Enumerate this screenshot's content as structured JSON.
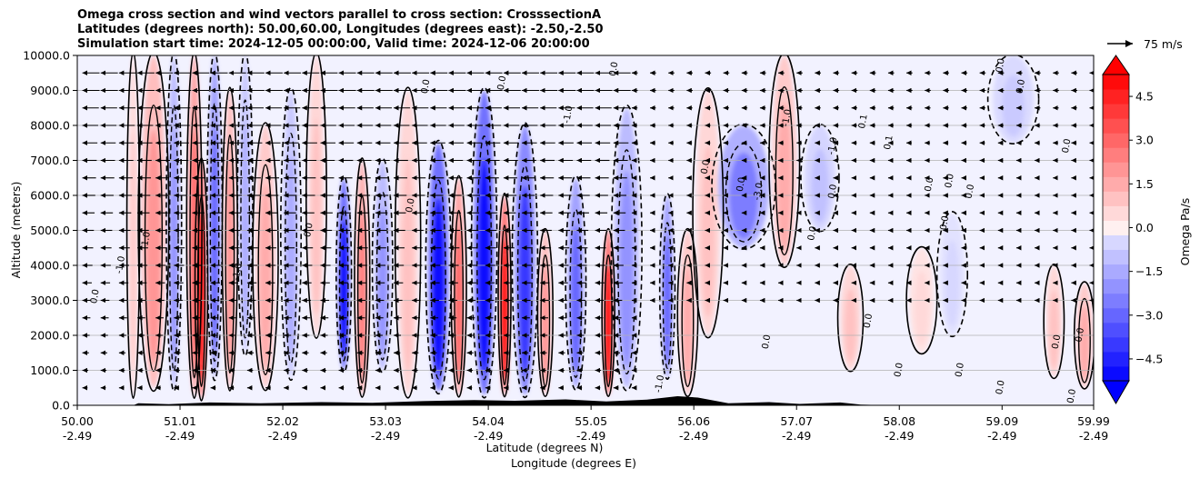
{
  "title_lines": [
    "Omega cross section and wind vectors parallel to cross section: CrosssectionA",
    "Latitudes (degrees north): 50.00,60.00, Longitudes (degrees east): -2.50,-2.50",
    "Simulation start time: 2024-12-05 00:00:00, Valid time: 2024-12-06 20:00:00"
  ],
  "colors": {
    "negative_strong": "#0000ff",
    "positive_strong": "#ff0000",
    "neutral": "#f2f2ff",
    "contour": "#000000",
    "gridline": "#b0b0b0",
    "terrain": "#000000"
  },
  "chart_data": {
    "type": "heatmap",
    "xlabel_lines": [
      "Latitude (degrees N)",
      "Longitude (degrees E)"
    ],
    "ylabel": "Altitude (meters)",
    "xlim": [
      50.0,
      59.99
    ],
    "ylim": [
      0,
      10000
    ],
    "x_ticks": [
      {
        "lat": 50.0,
        "lat_label": "50.00",
        "lon_label": "-2.49"
      },
      {
        "lat": 51.01,
        "lat_label": "51.01",
        "lon_label": "-2.49"
      },
      {
        "lat": 52.02,
        "lat_label": "52.02",
        "lon_label": "-2.49"
      },
      {
        "lat": 53.03,
        "lat_label": "53.03",
        "lon_label": "-2.49"
      },
      {
        "lat": 54.04,
        "lat_label": "54.04",
        "lon_label": "-2.49"
      },
      {
        "lat": 55.05,
        "lat_label": "55.05",
        "lon_label": "-2.49"
      },
      {
        "lat": 56.06,
        "lat_label": "56.06",
        "lon_label": "-2.49"
      },
      {
        "lat": 57.07,
        "lat_label": "57.07",
        "lon_label": "-2.49"
      },
      {
        "lat": 58.08,
        "lat_label": "58.08",
        "lon_label": "-2.49"
      },
      {
        "lat": 59.09,
        "lat_label": "59.09",
        "lon_label": "-2.49"
      },
      {
        "lat": 59.99,
        "lat_label": "59.99",
        "lon_label": "-2.49"
      }
    ],
    "y_ticks": [
      {
        "value": 0,
        "label": "0.0"
      },
      {
        "value": 1000,
        "label": "1000.0"
      },
      {
        "value": 2000,
        "label": "2000.0"
      },
      {
        "value": 3000,
        "label": "3000.0"
      },
      {
        "value": 4000,
        "label": "4000.0"
      },
      {
        "value": 5000,
        "label": "5000.0"
      },
      {
        "value": 6000,
        "label": "6000.0"
      },
      {
        "value": 7000,
        "label": "7000.0"
      },
      {
        "value": 8000,
        "label": "8000.0"
      },
      {
        "value": 9000,
        "label": "9000.0"
      },
      {
        "value": 10000,
        "label": "10000.0"
      }
    ],
    "grid": "horizontal",
    "colorbar": {
      "label": "Omega Pa/s",
      "vmin": -5.25,
      "vmax": 5.25,
      "step": 0.5,
      "extend": "both",
      "tick_labels": [
        {
          "value": 4.5,
          "label": "4.5"
        },
        {
          "value": 3.0,
          "label": "3.0"
        },
        {
          "value": 1.5,
          "label": "1.5"
        },
        {
          "value": 0.0,
          "label": "0.0"
        },
        {
          "value": -1.5,
          "label": "−1.5"
        },
        {
          "value": -3.0,
          "label": "−3.0"
        },
        {
          "value": -4.5,
          "label": "−4.5"
        }
      ]
    },
    "quiver_key": {
      "label": "75 m/s",
      "speed": 75
    },
    "omega_features": [
      {
        "lat": 50.55,
        "top": 10000,
        "bottom": 300,
        "width": 0.05,
        "omega": 0.8
      },
      {
        "lat": 50.75,
        "top": 10000,
        "bottom": 500,
        "width": 0.12,
        "omega": 2.0
      },
      {
        "lat": 50.95,
        "top": 10000,
        "bottom": 500,
        "width": 0.06,
        "omega": -2.0
      },
      {
        "lat": 51.15,
        "top": 10000,
        "bottom": 300,
        "width": 0.06,
        "omega": 3.0
      },
      {
        "lat": 51.22,
        "top": 7000,
        "bottom": 200,
        "width": 0.05,
        "omega": 5.0
      },
      {
        "lat": 51.35,
        "top": 10000,
        "bottom": 800,
        "width": 0.06,
        "omega": -3.0
      },
      {
        "lat": 51.5,
        "top": 9000,
        "bottom": 500,
        "width": 0.06,
        "omega": 2.0
      },
      {
        "lat": 51.65,
        "top": 10000,
        "bottom": 1500,
        "width": 0.06,
        "omega": -1.5
      },
      {
        "lat": 51.85,
        "top": 8000,
        "bottom": 500,
        "width": 0.1,
        "omega": 1.5
      },
      {
        "lat": 52.1,
        "top": 9000,
        "bottom": 800,
        "width": 0.08,
        "omega": -1.5
      },
      {
        "lat": 52.35,
        "top": 10000,
        "bottom": 2000,
        "width": 0.08,
        "omega": 1.0
      },
      {
        "lat": 52.62,
        "top": 6500,
        "bottom": 1000,
        "width": 0.06,
        "omega": -5.0
      },
      {
        "lat": 52.8,
        "top": 7000,
        "bottom": 300,
        "width": 0.06,
        "omega": 2.5
      },
      {
        "lat": 53.0,
        "top": 7000,
        "bottom": 1000,
        "width": 0.08,
        "omega": -2.0
      },
      {
        "lat": 53.25,
        "top": 9000,
        "bottom": 300,
        "width": 0.1,
        "omega": 1.0
      },
      {
        "lat": 53.55,
        "top": 7500,
        "bottom": 400,
        "width": 0.1,
        "omega": -5.0
      },
      {
        "lat": 53.75,
        "top": 6500,
        "bottom": 300,
        "width": 0.06,
        "omega": 3.0
      },
      {
        "lat": 54.0,
        "top": 9000,
        "bottom": 300,
        "width": 0.1,
        "omega": -5.0
      },
      {
        "lat": 54.2,
        "top": 6000,
        "bottom": 300,
        "width": 0.05,
        "omega": 5.0
      },
      {
        "lat": 54.4,
        "top": 8000,
        "bottom": 300,
        "width": 0.1,
        "omega": -4.0
      },
      {
        "lat": 54.6,
        "top": 5000,
        "bottom": 300,
        "width": 0.06,
        "omega": 2.0
      },
      {
        "lat": 54.9,
        "top": 6500,
        "bottom": 500,
        "width": 0.08,
        "omega": -3.0
      },
      {
        "lat": 55.22,
        "top": 5000,
        "bottom": 300,
        "width": 0.05,
        "omega": 5.0
      },
      {
        "lat": 55.4,
        "top": 8500,
        "bottom": 500,
        "width": 0.12,
        "omega": -2.0
      },
      {
        "lat": 55.8,
        "top": 6000,
        "bottom": 800,
        "width": 0.06,
        "omega": -3.0
      },
      {
        "lat": 56.0,
        "top": 5000,
        "bottom": 300,
        "width": 0.08,
        "omega": 1.5
      },
      {
        "lat": 56.2,
        "top": 9000,
        "bottom": 2000,
        "width": 0.12,
        "omega": 1.0
      },
      {
        "lat": 56.55,
        "top": 8000,
        "bottom": 4500,
        "width": 0.25,
        "omega": -2.5
      },
      {
        "lat": 56.95,
        "top": 10000,
        "bottom": 4000,
        "width": 0.12,
        "omega": 1.5
      },
      {
        "lat": 57.3,
        "top": 8000,
        "bottom": 5000,
        "width": 0.15,
        "omega": -1.0
      },
      {
        "lat": 57.6,
        "top": 4000,
        "bottom": 1000,
        "width": 0.1,
        "omega": 1.0
      },
      {
        "lat": 58.3,
        "top": 4500,
        "bottom": 1500,
        "width": 0.12,
        "omega": 0.5
      },
      {
        "lat": 58.6,
        "top": 5500,
        "bottom": 2000,
        "width": 0.12,
        "omega": -0.5
      },
      {
        "lat": 59.2,
        "top": 10000,
        "bottom": 7500,
        "width": 0.2,
        "omega": -0.8
      },
      {
        "lat": 59.6,
        "top": 4000,
        "bottom": 800,
        "width": 0.08,
        "omega": 1.0
      },
      {
        "lat": 59.9,
        "top": 3500,
        "bottom": 500,
        "width": 0.08,
        "omega": 1.5
      }
    ],
    "contour_labels": [
      {
        "lat": 50.2,
        "alt": 3100,
        "label": "0.0"
      },
      {
        "lat": 50.45,
        "alt": 4000,
        "label": "-1.0"
      },
      {
        "lat": 50.7,
        "alt": 4700,
        "label": "-1.0"
      },
      {
        "lat": 51.6,
        "alt": 3800,
        "label": "-1.0"
      },
      {
        "lat": 52.3,
        "alt": 5000,
        "label": "0.0"
      },
      {
        "lat": 53.3,
        "alt": 5700,
        "label": "0.0"
      },
      {
        "lat": 53.45,
        "alt": 9100,
        "label": "0.0"
      },
      {
        "lat": 54.2,
        "alt": 9200,
        "label": "0.0"
      },
      {
        "lat": 54.85,
        "alt": 8300,
        "label": "-1.0"
      },
      {
        "lat": 55.3,
        "alt": 9600,
        "label": "0.0"
      },
      {
        "lat": 56.2,
        "alt": 6800,
        "label": "0.0"
      },
      {
        "lat": 56.55,
        "alt": 6300,
        "label": "0.0"
      },
      {
        "lat": 56.72,
        "alt": 6100,
        "label": "-3.0"
      },
      {
        "lat": 57.0,
        "alt": 8200,
        "label": "-1.0"
      },
      {
        "lat": 57.45,
        "alt": 7400,
        "label": "-1.0"
      },
      {
        "lat": 57.45,
        "alt": 6100,
        "label": "0.0"
      },
      {
        "lat": 57.25,
        "alt": 4900,
        "label": "0.0"
      },
      {
        "lat": 57.75,
        "alt": 8100,
        "label": "0.1"
      },
      {
        "lat": 58.0,
        "alt": 7500,
        "label": "0.1"
      },
      {
        "lat": 58.4,
        "alt": 6300,
        "label": "0.0"
      },
      {
        "lat": 58.55,
        "alt": 5200,
        "label": "0.0"
      },
      {
        "lat": 58.6,
        "alt": 6400,
        "label": "0.0"
      },
      {
        "lat": 58.8,
        "alt": 6100,
        "label": "0.0"
      },
      {
        "lat": 59.1,
        "alt": 9700,
        "label": "0.0"
      },
      {
        "lat": 59.3,
        "alt": 9100,
        "label": "0.0"
      },
      {
        "lat": 59.75,
        "alt": 7400,
        "label": "0.0"
      },
      {
        "lat": 57.8,
        "alt": 2400,
        "label": "0.0"
      },
      {
        "lat": 58.1,
        "alt": 1000,
        "label": "0.0"
      },
      {
        "lat": 58.7,
        "alt": 1000,
        "label": "0.0"
      },
      {
        "lat": 59.1,
        "alt": 500,
        "label": "0.0"
      },
      {
        "lat": 59.8,
        "alt": 250,
        "label": "0.0"
      },
      {
        "lat": 59.65,
        "alt": 1800,
        "label": "0.0"
      },
      {
        "lat": 59.88,
        "alt": 2000,
        "label": "0.0"
      },
      {
        "lat": 56.8,
        "alt": 1800,
        "label": "0.0"
      },
      {
        "lat": 55.75,
        "alt": 600,
        "label": "-1.0"
      }
    ]
  }
}
